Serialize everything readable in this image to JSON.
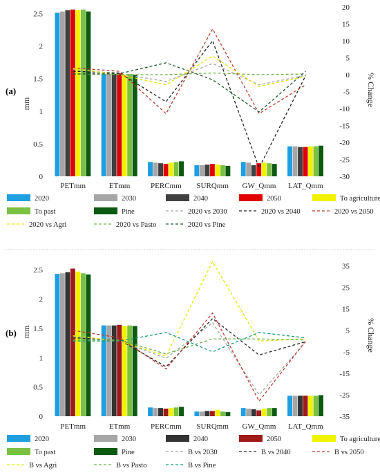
{
  "chart_data": [
    {
      "type": "bar",
      "panel_label": "(a)",
      "categories": [
        "PETmm",
        "ETmm",
        "PERCmm",
        "SURQmm",
        "GW_Qmm",
        "LAT_Qmm"
      ],
      "ylabel": "mm",
      "y2label": "% Change",
      "ylim": [
        0,
        2.6
      ],
      "y2lim": [
        -30,
        20
      ],
      "yticks": [
        "0",
        "0.5",
        "1",
        "1.5",
        "2",
        "2.5"
      ],
      "y2ticks": [
        "-30",
        "-25",
        "-20",
        "-15",
        "-10",
        "-5",
        "0",
        "5",
        "10",
        "15",
        "20"
      ],
      "bar_series": [
        {
          "name": "2020",
          "color": "#1f9fe0",
          "values": [
            2.51,
            1.57,
            0.22,
            0.17,
            0.22,
            0.46
          ]
        },
        {
          "name": "2030",
          "color": "#a6a6a6",
          "values": [
            2.53,
            1.57,
            0.21,
            0.17,
            0.21,
            0.46
          ]
        },
        {
          "name": "2040",
          "color": "#404040",
          "values": [
            2.55,
            1.57,
            0.2,
            0.18,
            0.17,
            0.45
          ]
        },
        {
          "name": "2050",
          "color": "#e00000",
          "values": [
            2.56,
            1.58,
            0.19,
            0.19,
            0.2,
            0.45
          ]
        },
        {
          "name": "To agriculture",
          "color": "#f2f200",
          "values": [
            2.55,
            1.56,
            0.21,
            0.18,
            0.21,
            0.46
          ]
        },
        {
          "name": "To past",
          "color": "#7ac142",
          "values": [
            2.56,
            1.57,
            0.22,
            0.17,
            0.2,
            0.46
          ]
        },
        {
          "name": "Pine",
          "color": "#0b5a10",
          "values": [
            2.53,
            1.56,
            0.23,
            0.16,
            0.19,
            0.47
          ]
        }
      ],
      "line_series": [
        {
          "name": "2020 vs 2030",
          "color": "#a6a6a6",
          "dash": "4,3",
          "values": [
            1.5,
            0.3,
            -2.0,
            3.3,
            -3.0,
            -0.2
          ]
        },
        {
          "name": "2020 vs 2040",
          "color": "#222222",
          "dash": "4,3",
          "values": [
            1.0,
            0.5,
            -8.0,
            10.0,
            -27.5,
            -0.3
          ]
        },
        {
          "name": "2020  vs 2050",
          "color": "#c0392b",
          "dash": "4,3",
          "values": [
            2.0,
            1.0,
            -11.5,
            13.5,
            -11.5,
            -3.0
          ]
        },
        {
          "name": "2020  vs Agri",
          "color": "#e6e600",
          "dash": "4,3",
          "values": [
            1.8,
            0.0,
            -3.0,
            5.5,
            -3.5,
            -0.5
          ]
        },
        {
          "name": "2020 vs Pasto",
          "color": "#6ab04c",
          "dash": "4,3",
          "values": [
            0.2,
            0.0,
            0.0,
            0.5,
            0.0,
            0.2
          ]
        },
        {
          "name": "2020  vs Pine",
          "color": "#1e5a2a",
          "dash": "4,3",
          "values": [
            0.2,
            0.3,
            3.5,
            -1.5,
            -11.0,
            1.0
          ]
        }
      ]
    },
    {
      "type": "bar",
      "panel_label": "(b)",
      "categories": [
        "PETmm",
        "ETmm",
        "PERCmm",
        "SURQmm",
        "GW_Qmm",
        "LAT_Qmm"
      ],
      "ylabel": "mm",
      "y2label": "% Change",
      "ylim": [
        0,
        2.75
      ],
      "y2lim": [
        -35,
        40
      ],
      "yticks": [
        "0",
        "0.5",
        "1",
        "1.5",
        "2",
        "2.5"
      ],
      "y2ticks": [
        "-35",
        "-25",
        "-15",
        "-5",
        "5",
        "15",
        "25",
        "35"
      ],
      "bar_series": [
        {
          "name": "2020",
          "color": "#1f9fe0",
          "values": [
            2.43,
            1.55,
            0.15,
            0.08,
            0.14,
            0.35
          ]
        },
        {
          "name": "2030",
          "color": "#a6a6a6",
          "values": [
            2.44,
            1.55,
            0.14,
            0.08,
            0.13,
            0.35
          ]
        },
        {
          "name": "2040",
          "color": "#333333",
          "values": [
            2.46,
            1.55,
            0.14,
            0.09,
            0.12,
            0.35
          ]
        },
        {
          "name": "2050",
          "color": "#a01818",
          "values": [
            2.52,
            1.56,
            0.13,
            0.09,
            0.1,
            0.35
          ]
        },
        {
          "name": "To agriculture",
          "color": "#f2f200",
          "values": [
            2.47,
            1.54,
            0.14,
            0.11,
            0.13,
            0.35
          ]
        },
        {
          "name": "To past",
          "color": "#7ac142",
          "values": [
            2.44,
            1.55,
            0.15,
            0.08,
            0.14,
            0.35
          ]
        },
        {
          "name": "Pine",
          "color": "#0b5a10",
          "values": [
            2.42,
            1.54,
            0.16,
            0.07,
            0.14,
            0.36
          ]
        }
      ],
      "line_series": [
        {
          "name": "B  vs 2030",
          "color": "#a6a6a6",
          "dash": "4,3",
          "values": [
            2.0,
            0.0,
            -8.0,
            8.5,
            -25.0,
            -0.5
          ]
        },
        {
          "name": "B  vs 2040",
          "color": "#222222",
          "dash": "4,3",
          "values": [
            1.5,
            0.5,
            -12.0,
            10.5,
            -6.5,
            -0.3
          ]
        },
        {
          "name": "B  vs 2050",
          "color": "#c0392b",
          "dash": "4,3",
          "values": [
            5.0,
            1.5,
            -13.0,
            13.0,
            -28.0,
            0.0
          ]
        },
        {
          "name": "B  vs Agri",
          "color": "#e6e600",
          "dash": "4,3",
          "values": [
            2.5,
            0.0,
            -7.0,
            37.0,
            0.0,
            1.0
          ]
        },
        {
          "name": "B  vs Pasto",
          "color": "#6ab04c",
          "dash": "4,3",
          "values": [
            0.5,
            0.5,
            -6.0,
            1.0,
            1.0,
            0.5
          ]
        },
        {
          "name": "B  vs Pine",
          "color": "#159a7a",
          "dash": "4,3",
          "values": [
            0.0,
            0.0,
            4.0,
            -5.0,
            4.0,
            1.5
          ]
        }
      ]
    }
  ]
}
